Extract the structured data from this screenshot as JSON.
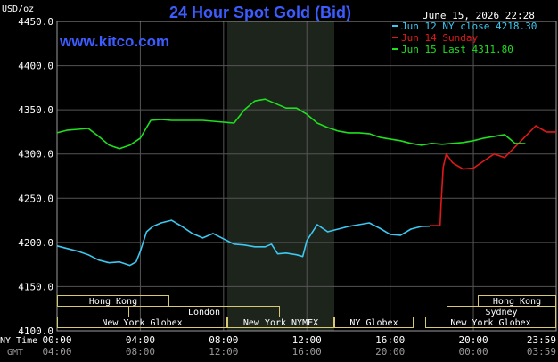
{
  "chart_data": {
    "type": "line",
    "title": "24 Hour Spot Gold (Bid)",
    "watermark": "www.kitco.com",
    "timestamp": "June 15, 2026 22:28",
    "ylabel": "USD/oz",
    "ylim": [
      4100,
      4450
    ],
    "yticks": [
      "4450.0",
      "4400.0",
      "4350.0",
      "4300.0",
      "4250.0",
      "4200.0",
      "4150.0",
      "4100.0"
    ],
    "x_unit": "hours (New York time)",
    "xlim": [
      0,
      23.98
    ],
    "x_row_label_ny": "NY Time",
    "x_row_label_gmt": "GMT",
    "xticks_ny": [
      "00:00",
      "04:00",
      "08:00",
      "12:00",
      "16:00",
      "20:00",
      "23:59"
    ],
    "xticks_gmt": [
      "04:00",
      "08:00",
      "12:00",
      "16:00",
      "20:00",
      "00:00",
      "03:59"
    ],
    "background_color": "#000000",
    "plot_background": "#000000",
    "nymex_shade_color": "#1c241c",
    "grid": true,
    "legend_position": "top-right",
    "series": [
      {
        "name": "Jun 12 NY close 4218.30",
        "color": "#3cc8f0",
        "x": [
          0,
          0.5,
          1,
          1.5,
          2,
          2.5,
          3,
          3.5,
          3.8,
          4,
          4.3,
          4.6,
          5,
          5.5,
          6,
          6.5,
          7,
          7.5,
          8,
          8.5,
          9,
          9.5,
          10,
          10.3,
          10.6,
          11,
          11.5,
          11.8,
          12,
          12.5,
          13,
          13.5,
          14,
          14.5,
          15,
          15.5,
          16,
          16.5,
          17,
          17.5,
          17.9
        ],
        "y": [
          4196,
          4193,
          4190,
          4186,
          4180,
          4177,
          4178,
          4174,
          4178,
          4190,
          4212,
          4218,
          4222,
          4225,
          4218,
          4210,
          4205,
          4210,
          4204,
          4198,
          4197,
          4195,
          4195,
          4198,
          4187,
          4188,
          4186,
          4184,
          4202,
          4220,
          4212,
          4215,
          4218,
          4220,
          4222,
          4216,
          4209,
          4208,
          4215,
          4218,
          4218.3
        ]
      },
      {
        "name": "Jun 14 Sunday",
        "color": "#e01818",
        "x": [
          17.9,
          18.4,
          18.45,
          18.55,
          18.7,
          19,
          19.5,
          20,
          20.5,
          21,
          21.5,
          22,
          22.5,
          23,
          23.5,
          23.98
        ],
        "y": [
          4219,
          4219,
          4245,
          4285,
          4300,
          4290,
          4283,
          4284,
          4292,
          4300,
          4296,
          4308,
          4320,
          4332,
          4325,
          4325
        ]
      },
      {
        "name": "Jun 15 Last 4311.80",
        "color": "#1ee01e",
        "x": [
          0,
          0.5,
          1,
          1.5,
          2,
          2.5,
          3,
          3.5,
          4,
          4.5,
          5,
          5.5,
          6,
          6.5,
          7,
          7.5,
          8,
          8.5,
          9,
          9.5,
          10,
          10.5,
          11,
          11.5,
          12,
          12.5,
          13,
          13.5,
          14,
          14.5,
          15,
          15.5,
          16,
          16.5,
          17,
          17.5,
          18,
          18.5,
          19,
          19.5,
          20,
          20.5,
          21,
          21.5,
          22,
          22.5
        ],
        "y": [
          4324,
          4327,
          4328,
          4329,
          4320,
          4310,
          4306,
          4310,
          4318,
          4338,
          4339,
          4338,
          4338,
          4338,
          4338,
          4337,
          4336,
          4335,
          4350,
          4360,
          4362,
          4357,
          4352,
          4352,
          4345,
          4335,
          4330,
          4326,
          4324,
          4324,
          4323,
          4319,
          4317,
          4315,
          4312,
          4310,
          4312,
          4311,
          4312,
          4313,
          4315,
          4318,
          4320,
          4322,
          4312,
          4311.8
        ]
      }
    ],
    "sessions": [
      {
        "label": "Hong Kong",
        "row": 0
      },
      {
        "label": "London",
        "row": 1
      },
      {
        "label": "New York Globex",
        "row": 2
      },
      {
        "label": "New York NYMEX",
        "row": 2
      },
      {
        "label": "NY Globex",
        "row": 2
      },
      {
        "label": "Hong Kong",
        "row": 0
      },
      {
        "label": "Sydney",
        "row": 1
      },
      {
        "label": "New York Globex",
        "row": 2
      }
    ]
  }
}
